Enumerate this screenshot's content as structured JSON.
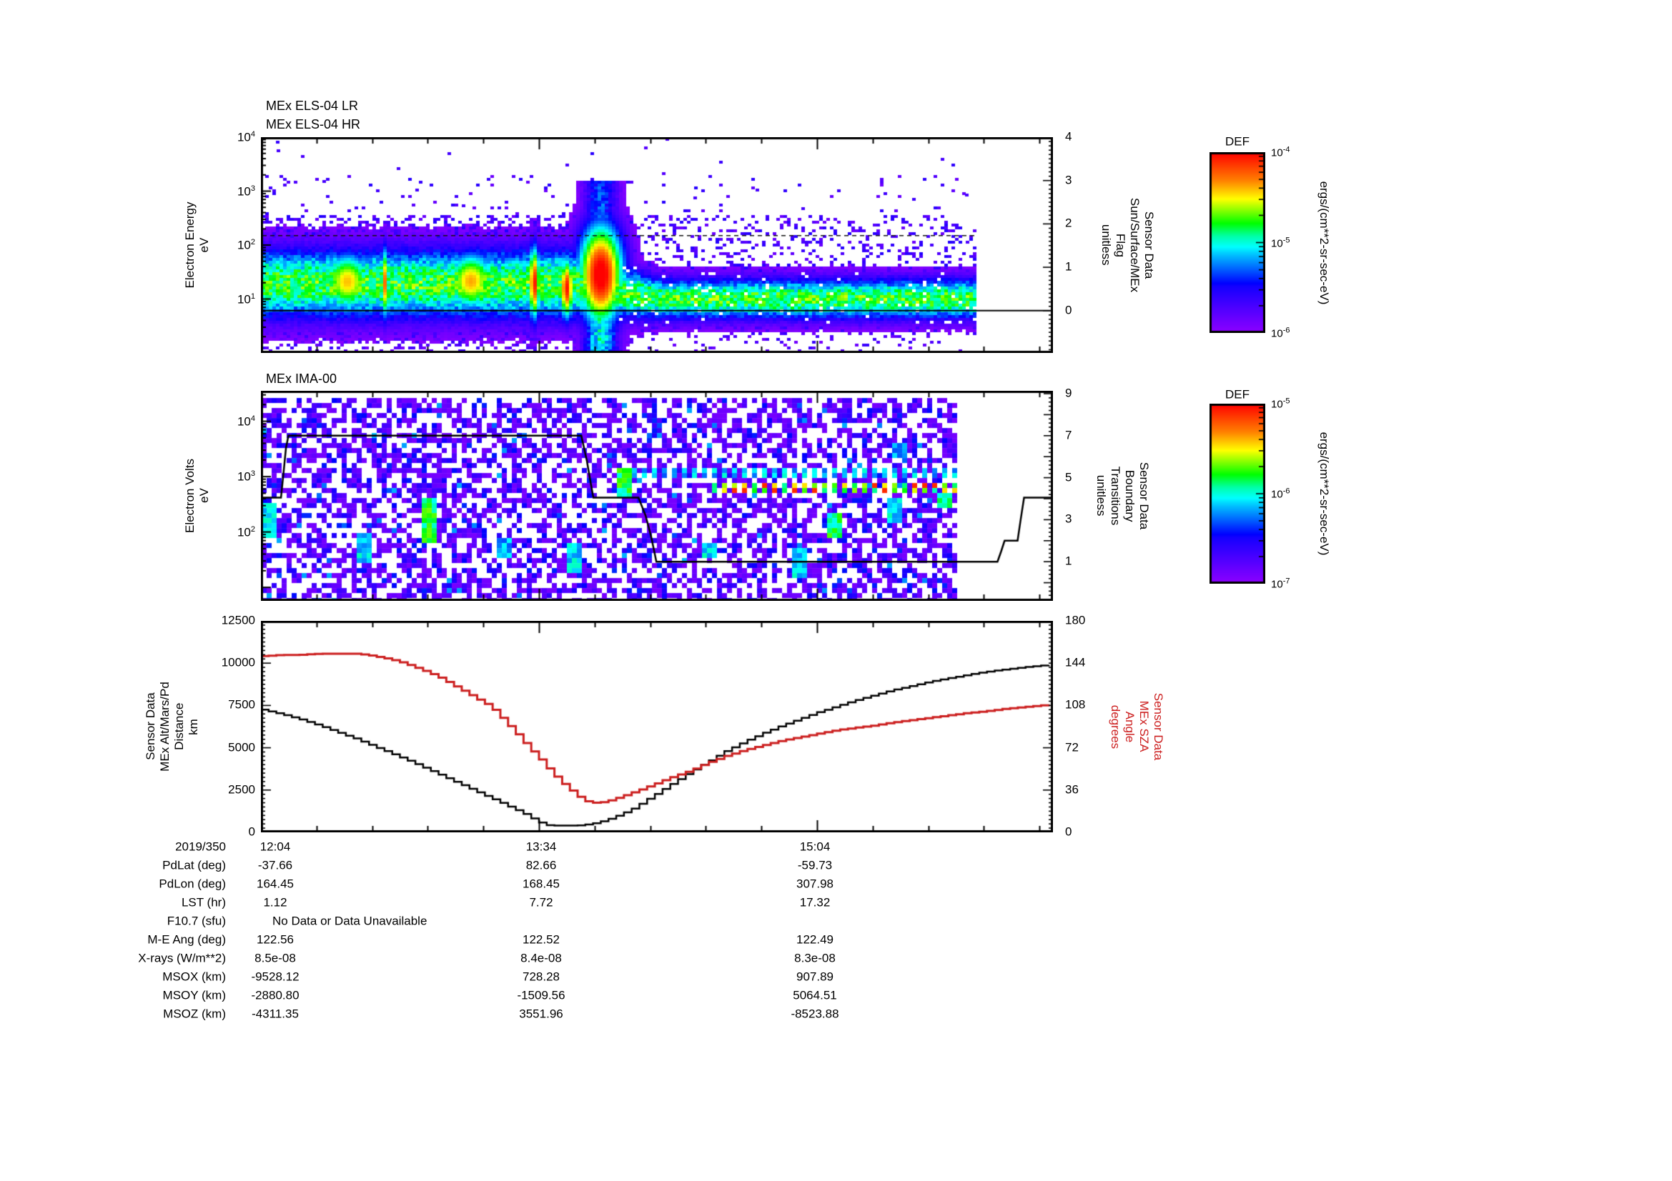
{
  "page": {
    "background": "#ffffff",
    "accent_red": "#cc1f1f"
  },
  "els": {
    "titles": [
      "MEx ELS-04 LR",
      "MEx ELS-04 HR"
    ],
    "ylabel_lines": [
      "Electron Energy",
      "eV"
    ],
    "ytick_exponents": [
      4,
      3,
      2,
      1
    ],
    "right_axis": {
      "tick_labels": [
        "4",
        "3",
        "2",
        "1",
        "0"
      ],
      "label_lines": [
        "Sensor Data",
        "Sun/Surface/MEx",
        "Flag",
        "unitless"
      ]
    },
    "colorbar": {
      "title": "DEF",
      "tick_exponents": [
        -4,
        -5,
        -6
      ],
      "unit": "ergs/(cm**2-sr-sec-eV)"
    }
  },
  "ima": {
    "title": "MEx IMA-00",
    "ylabel_lines": [
      "Electron Volts",
      "eV"
    ],
    "ytick_exponents": [
      4,
      3,
      2
    ],
    "right_axis": {
      "tick_labels": [
        "9",
        "7",
        "5",
        "3",
        "1"
      ],
      "label_lines": [
        "Sensor Data",
        "Boundary",
        "Transitions",
        "unitless"
      ]
    },
    "colorbar": {
      "title": "DEF",
      "tick_exponents": [
        -5,
        -6,
        -7
      ],
      "unit": "ergs/(cm**2-sr-sec-eV)"
    }
  },
  "bottom": {
    "ylabel_lines": [
      "Sensor Data",
      "MEx Alt/Mars/Pd",
      "Distance",
      "km"
    ],
    "ytick_labels": [
      "12500",
      "10000",
      "7500",
      "5000",
      "2500",
      "0"
    ],
    "right_axis": {
      "tick_labels": [
        "180",
        "144",
        "108",
        "72",
        "36",
        "0"
      ],
      "label_lines": [
        "Sensor Data",
        "MEx SZA",
        "Angle",
        "degrees"
      ],
      "color": "#cc1f1f"
    }
  },
  "xaxis": {
    "date_label": "2019/350",
    "tick_labels": [
      "12:04",
      "13:34",
      "15:04"
    ]
  },
  "table": {
    "rows": [
      {
        "label": "PdLat (deg)",
        "values": [
          "-37.66",
          "82.66",
          "-59.73"
        ]
      },
      {
        "label": "PdLon (deg)",
        "values": [
          "164.45",
          "168.45",
          "307.98"
        ]
      },
      {
        "label": "LST (hr)",
        "values": [
          "1.12",
          "7.72",
          "17.32"
        ]
      },
      {
        "label": "F10.7 (sfu)",
        "values": [],
        "span_value": "No Data or Data Unavailable"
      },
      {
        "label": "M-E Ang (deg)",
        "values": [
          "122.56",
          "122.52",
          "122.49"
        ]
      },
      {
        "label": "X-rays (W/m**2)",
        "values": [
          "8.5e-08",
          "8.4e-08",
          "8.3e-08"
        ]
      },
      {
        "label": "MSOX (km)",
        "values": [
          "-9528.12",
          "728.28",
          "907.89"
        ]
      },
      {
        "label": "MSOY (km)",
        "values": [
          "-2880.80",
          "-1509.56",
          "5064.51"
        ]
      },
      {
        "label": "MSOZ (km)",
        "values": [
          "-4311.35",
          "3551.96",
          "-8523.88"
        ]
      }
    ]
  },
  "chart_data": [
    {
      "type": "heatmap",
      "title": "MEx ELS-04 LR / MEx ELS-04 HR",
      "ylabel": "Electron Energy eV",
      "y_scale": "log",
      "y_range_ev": [
        1,
        10000
      ],
      "x_start": "2019/350 12:04",
      "x_major_ticks": [
        "12:04",
        "13:34",
        "15:04"
      ],
      "x_major_tick_minutes": [
        0,
        90,
        180
      ],
      "x_minor_step_minutes": 18,
      "x_total_minutes": 256.4,
      "data_end_minute": 231.5,
      "z_label": "DEF ergs/(cm**2-sr-sec-eV)",
      "z_range": [
        1e-06,
        0.0001
      ],
      "artifact_dashed_line_ev": 150,
      "right_overlay": {
        "label": "Sensor Data Sun/Surface/MEx Flag unitless",
        "range": [
          -0.99,
          4.0
        ],
        "ticks": [
          0,
          1,
          2,
          3,
          4
        ],
        "series_minute_value": [
          [
            0,
            0
          ],
          [
            256.4,
            0
          ]
        ]
      },
      "features": {
        "band": {
          "log10_center_early": 1.28,
          "log10_center_late": 1.0,
          "center_shift_minutes": [
            100,
            130
          ],
          "halfwidth_early": 0.42,
          "halfwidth_late": 0.24,
          "peak_value": 0.63
        },
        "hotspots_min_hw_le_lehw_amp": [
          [
            28,
            6,
            1.32,
            0.4,
            0.8
          ],
          [
            40,
            1.1,
            1.3,
            0.48,
            0.88
          ],
          [
            68,
            6,
            1.33,
            0.4,
            0.82
          ],
          [
            88.5,
            1.5,
            1.3,
            0.5,
            0.98
          ],
          [
            99,
            1.8,
            1.2,
            0.42,
            0.98
          ],
          [
            110,
            5.5,
            1.45,
            0.7,
            1.05
          ]
        ],
        "plume": {
          "center_minute": 110,
          "sigma_minutes": 4.2,
          "max_log10_ev": 3.2,
          "value": 0.5
        },
        "specks_minute_log10ev": [
          [
            5,
            3.78
          ],
          [
            20,
            3.2
          ],
          [
            44,
            3.45
          ],
          [
            50,
            3.05
          ],
          [
            65,
            2.75
          ],
          [
            87,
            3.3
          ],
          [
            140,
            2.9
          ],
          [
            160,
            3.05
          ],
          [
            175,
            2.7
          ],
          [
            220,
            3.62
          ],
          [
            228,
            2.95
          ]
        ]
      }
    },
    {
      "type": "heatmap",
      "title": "MEx IMA-00",
      "ylabel": "Electron Volts eV",
      "y_scale": "log",
      "y_range_ev": [
        5.75,
        35500
      ],
      "x_major_ticks": [
        "12:04",
        "13:34",
        "15:04"
      ],
      "x_total_minutes": 256.4,
      "data_end_minute": 225,
      "data_top_log10_ev": 4.42,
      "z_label": "DEF ergs/(cm**2-sr-sec-eV)",
      "z_range": [
        1e-07,
        1e-05
      ],
      "right_overlay": {
        "label": "Sensor Data Boundary Transitions unitless",
        "range": [
          -0.87,
          9.14
        ],
        "ticks": [
          1,
          3,
          5,
          7,
          9
        ],
        "series_minute_value": [
          [
            0,
            4.05
          ],
          [
            6.5,
            4.05
          ],
          [
            7.3,
            5.2
          ],
          [
            8.1,
            6.4
          ],
          [
            8.9,
            7
          ],
          [
            103.7,
            7
          ],
          [
            105.5,
            5.8
          ],
          [
            106.8,
            4.7
          ],
          [
            107.6,
            4.05
          ],
          [
            122.2,
            4.05
          ],
          [
            124.5,
            3.2
          ],
          [
            126.3,
            2.2
          ],
          [
            128,
            1
          ],
          [
            238.4,
            1
          ],
          [
            239.6,
            1.5
          ],
          [
            240.7,
            2
          ],
          [
            244.9,
            2
          ],
          [
            245.9,
            3
          ],
          [
            247,
            4.05
          ],
          [
            256.4,
            4.05
          ]
        ]
      },
      "features": {
        "noise_fill_fraction": 0.56,
        "streaks_min_lelo_lehi_v": [
          [
            2,
            1.9,
            2.5,
            0.5
          ],
          [
            33,
            1.4,
            2.0,
            0.5
          ],
          [
            54,
            1.8,
            2.6,
            0.62
          ],
          [
            78,
            1.5,
            1.9,
            0.45
          ],
          [
            101,
            1.3,
            1.8,
            0.5
          ],
          [
            118,
            2.6,
            3.2,
            0.62
          ],
          [
            145,
            1.5,
            1.8,
            0.5
          ],
          [
            174,
            1.2,
            1.7,
            0.5
          ],
          [
            186,
            1.9,
            2.3,
            0.6
          ],
          [
            205,
            2.2,
            2.6,
            0.5
          ],
          [
            207,
            3.3,
            3.6,
            0.45
          ],
          [
            222,
            2.4,
            2.7,
            0.58
          ]
        ],
        "dotted_rows": [
          {
            "log10_ev": 3.05,
            "from_minute": 116,
            "value": 0.48,
            "red_specks": false
          },
          {
            "log10_ev": 2.8,
            "from_minute": 146,
            "value": 0.72,
            "red_specks": true
          }
        ]
      }
    },
    {
      "type": "line",
      "x_major_ticks": [
        "12:04",
        "13:34",
        "15:04"
      ],
      "x_total_minutes": 256.4,
      "ylim_left": [
        0,
        12500
      ],
      "yticks_left": [
        0,
        2500,
        5000,
        7500,
        10000,
        12500
      ],
      "ylim_right": [
        0,
        180
      ],
      "yticks_right": [
        0,
        36,
        72,
        108,
        144,
        180
      ],
      "series": [
        {
          "name": "Sensor Data MEx Alt/Mars/Pd Distance km",
          "color": "#000000",
          "axis": "left",
          "points_minute_value": [
            [
              0,
              7250
            ],
            [
              6,
              7000
            ],
            [
              12,
              6700
            ],
            [
              18,
              6350
            ],
            [
              24,
              5950
            ],
            [
              30,
              5550
            ],
            [
              36,
              5100
            ],
            [
              42,
              4650
            ],
            [
              48,
              4200
            ],
            [
              54,
              3700
            ],
            [
              60,
              3200
            ],
            [
              66,
              2700
            ],
            [
              72,
              2200
            ],
            [
              78,
              1700
            ],
            [
              82,
              1350
            ],
            [
              86,
              1000
            ],
            [
              89,
              650
            ],
            [
              92,
              430
            ],
            [
              95,
              400
            ],
            [
              101,
              400
            ],
            [
              104,
              430
            ],
            [
              108,
              550
            ],
            [
              112,
              760
            ],
            [
              116,
              1060
            ],
            [
              120,
              1400
            ],
            [
              126,
              2100
            ],
            [
              132,
              2800
            ],
            [
              138,
              3500
            ],
            [
              144,
              4150
            ],
            [
              150,
              4800
            ],
            [
              156,
              5350
            ],
            [
              162,
              5850
            ],
            [
              168,
              6300
            ],
            [
              174,
              6700
            ],
            [
              180,
              7100
            ],
            [
              186,
              7450
            ],
            [
              192,
              7800
            ],
            [
              198,
              8100
            ],
            [
              204,
              8400
            ],
            [
              210,
              8650
            ],
            [
              216,
              8900
            ],
            [
              222,
              9100
            ],
            [
              228,
              9300
            ],
            [
              234,
              9480
            ],
            [
              240,
              9620
            ],
            [
              246,
              9750
            ],
            [
              252,
              9850
            ],
            [
              258,
              9930
            ],
            [
              256.4,
              9900
            ],
            [
              264,
              10000
            ]
          ]
        },
        {
          "name": "Sensor Data MEx SZA Angle degrees",
          "color": "#cc1f1f",
          "axis": "right",
          "points_minute_value": [
            [
              0,
              150
            ],
            [
              6,
              151
            ],
            [
              12,
              151
            ],
            [
              18,
              152
            ],
            [
              24,
              152
            ],
            [
              30,
              152
            ],
            [
              34,
              151
            ],
            [
              38,
              149
            ],
            [
              42,
              147
            ],
            [
              46,
              144
            ],
            [
              50,
              140
            ],
            [
              54,
              136
            ],
            [
              58,
              131
            ],
            [
              62,
              125
            ],
            [
              66,
              119
            ],
            [
              70,
              113
            ],
            [
              74,
              107
            ],
            [
              78,
              96
            ],
            [
              82,
              85
            ],
            [
              86,
              73
            ],
            [
              90,
              62
            ],
            [
              94,
              50
            ],
            [
              98,
              40
            ],
            [
              102,
              31
            ],
            [
              105,
              26.5
            ],
            [
              108,
              25
            ],
            [
              111,
              26
            ],
            [
              114,
              28.5
            ],
            [
              118,
              32
            ],
            [
              122,
              36
            ],
            [
              126,
              40
            ],
            [
              132,
              46.5
            ],
            [
              138,
              52
            ],
            [
              144,
              59
            ],
            [
              150,
              65
            ],
            [
              156,
              70
            ],
            [
              162,
              74
            ],
            [
              168,
              78
            ],
            [
              174,
              81
            ],
            [
              180,
              84
            ],
            [
              186,
              87
            ],
            [
              192,
              89
            ],
            [
              198,
              91
            ],
            [
              204,
              93.5
            ],
            [
              210,
              95.5
            ],
            [
              216,
              97.5
            ],
            [
              222,
              99.5
            ],
            [
              228,
              101.5
            ],
            [
              234,
              103
            ],
            [
              240,
              105
            ],
            [
              246,
              106.5
            ],
            [
              252,
              108
            ],
            [
              258,
              110
            ],
            [
              264,
              112.5
            ]
          ]
        }
      ]
    }
  ]
}
